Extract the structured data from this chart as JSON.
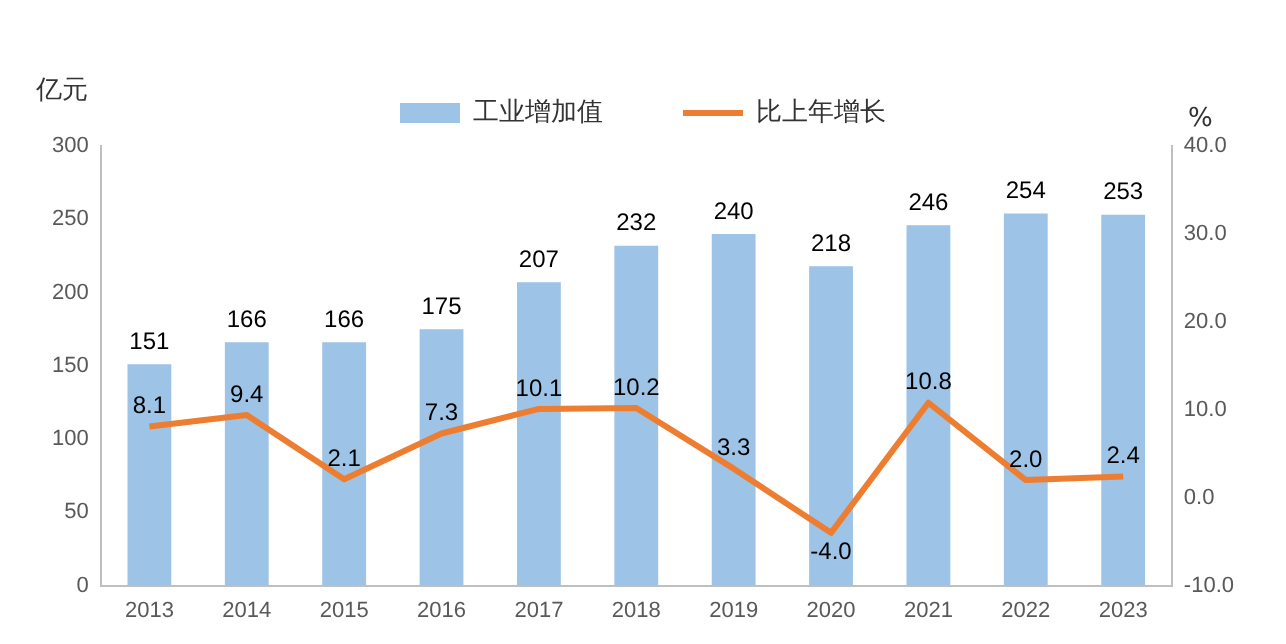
{
  "chart_data": {
    "type": "bar",
    "ylabel": "亿元",
    "y2label": "%",
    "categories": [
      "2013",
      "2014",
      "2015",
      "2016",
      "2017",
      "2018",
      "2019",
      "2020",
      "2021",
      "2022",
      "2023"
    ],
    "series": [
      {
        "name": "工业增加值",
        "color": "#9dc3e6",
        "values": [
          151,
          166,
          166,
          175,
          207,
          232,
          240,
          218,
          246,
          254,
          253
        ],
        "value_labels": [
          "151",
          "166",
          "166",
          "175",
          "207",
          "232",
          "240",
          "218",
          "246",
          "254",
          "253"
        ]
      },
      {
        "name": "比上年增长",
        "type": "line",
        "axis": "y2",
        "color": "#ed7d31",
        "marker": "none",
        "values": [
          8.1,
          9.4,
          2.1,
          7.3,
          10.1,
          10.2,
          3.3,
          -4.0,
          10.8,
          2.0,
          2.4
        ],
        "value_labels": [
          "8.1",
          "9.4",
          "2.1",
          "7.3",
          "10.1",
          "10.2",
          "3.3",
          "-4.0",
          "10.8",
          "2.0",
          "2.4"
        ]
      }
    ],
    "ylim": [
      0,
      300
    ],
    "yticks": [
      0,
      50,
      100,
      150,
      200,
      250,
      300
    ],
    "y2lim": [
      -10,
      40
    ],
    "y2ticks": [
      {
        "value": -10,
        "label": "-10.0"
      },
      {
        "value": 0,
        "label": "0.0"
      },
      {
        "value": 10,
        "label": "10.0"
      },
      {
        "value": 20,
        "label": "20.0"
      },
      {
        "value": 30,
        "label": "30.0"
      },
      {
        "value": 40,
        "label": "40.0"
      }
    ],
    "grid": false,
    "legend": "top"
  }
}
